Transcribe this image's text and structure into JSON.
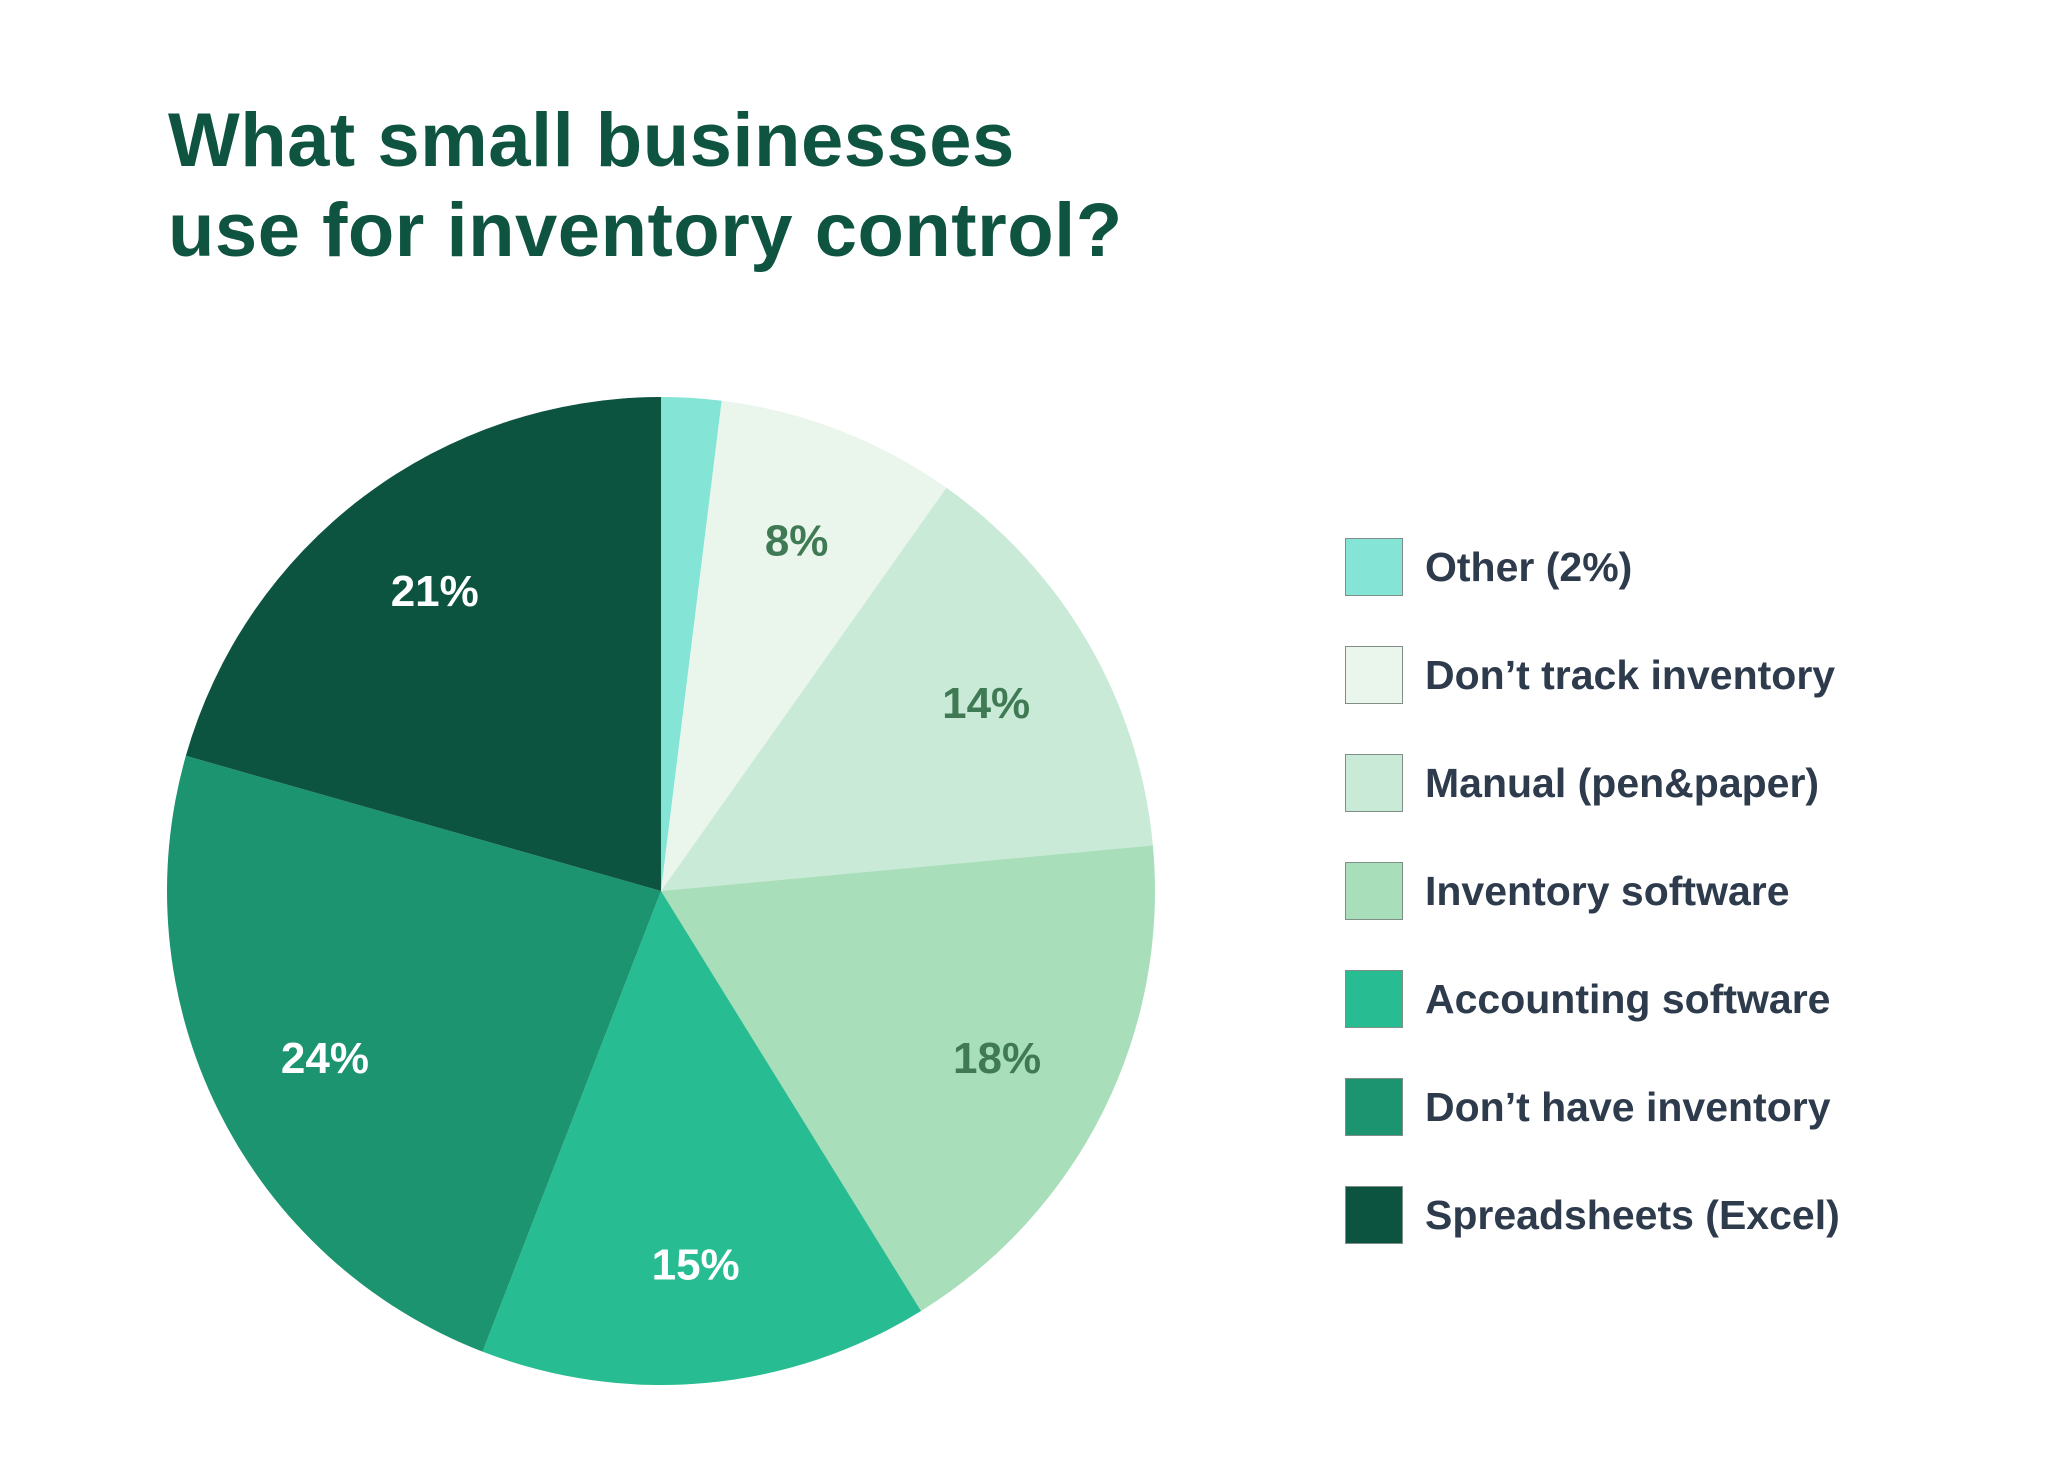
{
  "chart_data": {
    "type": "pie",
    "title": [
      "What small businesses",
      "use for inventory control?"
    ],
    "start": "top",
    "direction": "clockwise",
    "legend_position": "right",
    "slices": [
      {
        "label": "Other (2%)",
        "value": 2,
        "data_label": "",
        "color": "#84e5d6",
        "label_color": "#3f7a55"
      },
      {
        "label": "Don’t track inventory",
        "value": 8,
        "data_label": "8%",
        "color": "#eaf5ec",
        "label_color": "#3f7a55"
      },
      {
        "label": "Manual (pen&paper)",
        "value": 14,
        "data_label": "14%",
        "color": "#c9ead6",
        "label_color": "#3f7a55"
      },
      {
        "label": "Inventory software",
        "value": 18,
        "data_label": "18%",
        "color": "#a8deb9",
        "label_color": "#3f7a55"
      },
      {
        "label": "Accounting software",
        "value": 15,
        "data_label": "15%",
        "color": "#27bc91",
        "label_color": "#ffffff"
      },
      {
        "label": "Don’t have inventory",
        "value": 24,
        "data_label": "24%",
        "color": "#1c9470",
        "label_color": "#ffffff"
      },
      {
        "label": "Spreadsheets (Excel)",
        "value": 21,
        "data_label": "21%",
        "color": "#0c5440",
        "label_color": "#ffffff"
      }
    ]
  }
}
